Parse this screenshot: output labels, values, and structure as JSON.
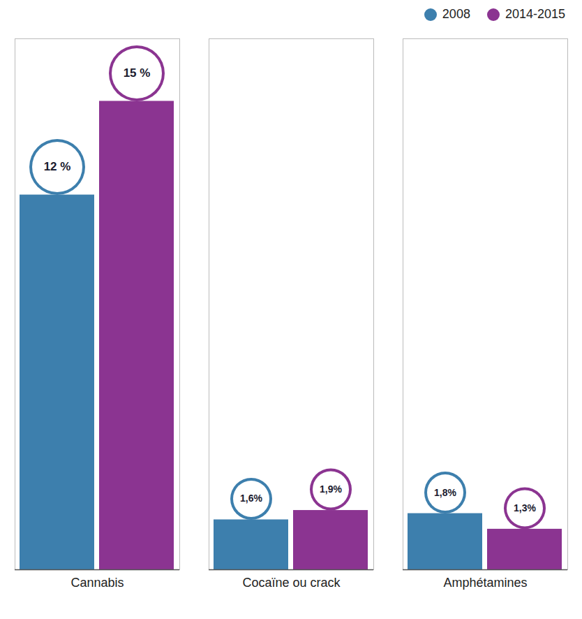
{
  "chart_data": {
    "type": "bar",
    "categories": [
      "Cannabis",
      "Cocaïne ou crack",
      "Amphétamines"
    ],
    "series": [
      {
        "name": "2008",
        "color": "#3d7fad",
        "values": [
          12,
          1.6,
          1.8
        ],
        "value_labels": [
          "12 %",
          "1,6%",
          "1,8%"
        ]
      },
      {
        "name": "2014-2015",
        "color": "#8b3491",
        "values": [
          15,
          1.9,
          1.3
        ],
        "value_labels": [
          "15 %",
          "1,9%",
          "1,3%"
        ]
      }
    ],
    "ylim": [
      0,
      17
    ],
    "yticks": [],
    "tick_labels": "x",
    "grid": false,
    "legend": "upper right",
    "data_labels": true
  }
}
